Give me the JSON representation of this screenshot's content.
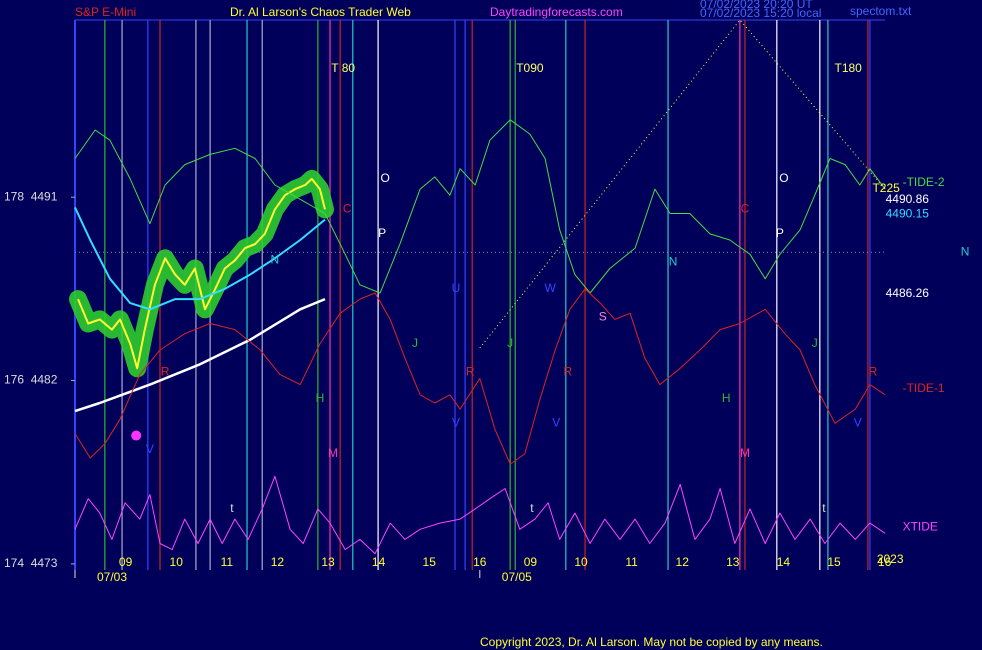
{
  "chart_data": {
    "type": "line",
    "title": "Dr. Al Larson's Chaos Trader Web",
    "instrument": "S&P E-Mini",
    "site": "Daytradingforecasts.com",
    "file": "spectom.txt",
    "stamps": [
      "07/02/2023 20:20 UT",
      "07/02/2023 15:20 local"
    ],
    "copyright": "Copyright 2023, Dr. Al Larson. May not be copied by any means.",
    "background": "#00005a",
    "xlim": [
      -1,
      15
    ],
    "ylim": [
      4472.7,
      4499.7
    ],
    "yticks": [
      {
        "value": 4491,
        "label": "178  4491"
      },
      {
        "value": 4482,
        "label": "176  4482"
      },
      {
        "value": 4473,
        "label": "174  4473"
      }
    ],
    "xticks": [
      {
        "value": 0,
        "label": "09"
      },
      {
        "value": 1,
        "label": "10"
      },
      {
        "value": 2,
        "label": "11"
      },
      {
        "value": 3,
        "label": "12"
      },
      {
        "value": 4,
        "label": "13"
      },
      {
        "value": 5,
        "label": "14"
      },
      {
        "value": 6,
        "label": "15"
      },
      {
        "value": 7,
        "label": "16"
      },
      {
        "value": 8,
        "label": "09"
      },
      {
        "value": 9,
        "label": "10"
      },
      {
        "value": 10,
        "label": "11"
      },
      {
        "value": 11,
        "label": "12"
      },
      {
        "value": 12,
        "label": "13"
      },
      {
        "value": 13,
        "label": "14"
      },
      {
        "value": 14,
        "label": "15"
      },
      {
        "value": 15,
        "label": "16"
      }
    ],
    "date_labels": [
      {
        "value": -1,
        "label": "07/03"
      },
      {
        "value": 7,
        "label": "07/05"
      }
    ],
    "series": [
      {
        "color": "#ffff33",
        "glow": "#2ecc2e",
        "width": 2,
        "x": [
          -0.94,
          -0.74,
          -0.51,
          -0.27,
          -0.11,
          0.09,
          0.23,
          0.38,
          0.58,
          0.78,
          0.98,
          1.17,
          1.37,
          1.57,
          1.77,
          1.96,
          2.16,
          2.36,
          2.56,
          2.75,
          2.95,
          3.15,
          3.35,
          3.55,
          3.68,
          3.84,
          3.94
        ],
        "values": [
          4486.0,
          4484.8,
          4485.0,
          4484.5,
          4485.0,
          4483.8,
          4482.6,
          4484.5,
          4486.7,
          4488.0,
          4487.2,
          4486.7,
          4487.5,
          4485.5,
          4486.5,
          4487.5,
          4487.9,
          4488.5,
          4488.7,
          4489.2,
          4490.4,
          4491.1,
          4491.4,
          4491.6,
          4491.9,
          4491.4,
          4490.4
        ]
      },
      {
        "color": "#33ddff",
        "width": 2,
        "x": [
          -1.0,
          -0.7,
          -0.31,
          0.09,
          0.48,
          0.98,
          1.47,
          1.96,
          2.46,
          2.95,
          3.45,
          3.94
        ],
        "values": [
          4490.5,
          4488.9,
          4487.0,
          4485.8,
          4485.5,
          4486.0,
          4486.0,
          4486.5,
          4487.2,
          4488.0,
          4488.9,
          4489.9
        ]
      },
      {
        "color": "#ffffff",
        "width": 2.5,
        "x": [
          -1.0,
          -0.51,
          0.48,
          1.47,
          2.46,
          3.45,
          3.94
        ],
        "values": [
          4480.5,
          4480.9,
          4481.8,
          4482.8,
          4484.0,
          4485.5,
          4486.0
        ]
      },
      {
        "name": "-TIDE-2",
        "color": "#44dd44",
        "width": 1,
        "x": [
          -1.0,
          -0.6,
          -0.31,
          0.09,
          0.48,
          0.78,
          1.17,
          1.67,
          2.16,
          2.56,
          2.95,
          3.45,
          3.94,
          4.34,
          4.63,
          5.03,
          5.42,
          5.82,
          6.11,
          6.41,
          6.61,
          6.91,
          7.2,
          7.6,
          7.99,
          8.29,
          8.58,
          8.88,
          9.18,
          9.57,
          10.07,
          10.46,
          10.76,
          11.15,
          11.55,
          11.94,
          12.34,
          12.64,
          12.93,
          13.33,
          13.62,
          13.92,
          14.22,
          14.51,
          14.71,
          15.01
        ],
        "values": [
          4492.9,
          4494.3,
          4493.8,
          4491.9,
          4489.7,
          4491.6,
          4492.6,
          4493.1,
          4493.4,
          4492.9,
          4491.6,
          4490.9,
          4490.2,
          4488.2,
          4486.7,
          4486.3,
          4488.7,
          4491.4,
          4492.0,
          4491.1,
          4492.4,
          4491.6,
          4493.8,
          4494.8,
          4494.1,
          4492.9,
          4489.4,
          4487.2,
          4486.3,
          4487.5,
          4488.5,
          4491.4,
          4490.2,
          4490.2,
          4489.2,
          4488.9,
          4488.2,
          4487.0,
          4488.2,
          4489.4,
          4491.1,
          4492.9,
          4492.6,
          4491.6,
          4492.4,
          4491.4
        ]
      },
      {
        "name": "-TIDE-1",
        "color": "#dd2222",
        "width": 1,
        "x": [
          -1.0,
          -0.7,
          -0.41,
          -0.11,
          0.28,
          0.68,
          1.17,
          1.67,
          2.16,
          2.66,
          3.05,
          3.45,
          3.84,
          4.24,
          4.63,
          4.93,
          5.23,
          5.52,
          5.82,
          6.11,
          6.41,
          6.61,
          7.0,
          7.3,
          7.6,
          7.89,
          8.19,
          8.49,
          8.78,
          9.08,
          9.38,
          9.67,
          9.97,
          10.26,
          10.56,
          10.96,
          11.35,
          11.75,
          12.14,
          12.64,
          13.03,
          13.33,
          13.62,
          14.02,
          14.42,
          14.71,
          15.01
        ],
        "values": [
          4479.4,
          4478.2,
          4478.9,
          4480.1,
          4482.3,
          4483.5,
          4484.3,
          4484.8,
          4484.5,
          4483.5,
          4482.3,
          4481.8,
          4483.8,
          4485.3,
          4486.0,
          4486.3,
          4485.0,
          4483.1,
          4481.3,
          4480.9,
          4481.3,
          4480.6,
          4482.1,
          4479.6,
          4477.9,
          4478.4,
          4481.1,
          4483.5,
          4485.5,
          4486.5,
          4485.8,
          4485.0,
          4485.3,
          4483.1,
          4481.8,
          4482.6,
          4483.5,
          4484.5,
          4484.8,
          4485.5,
          4484.3,
          4483.5,
          4481.8,
          4479.9,
          4480.6,
          4481.8,
          4481.3
        ]
      },
      {
        "name": "XTIDE",
        "color": "#ff44ff",
        "width": 1,
        "x": [
          -1.0,
          -0.74,
          -0.51,
          -0.27,
          -0.01,
          0.28,
          0.48,
          0.68,
          0.92,
          1.17,
          1.43,
          1.67,
          1.91,
          2.16,
          2.42,
          2.7,
          2.95,
          3.25,
          3.51,
          3.8,
          4.04,
          4.34,
          4.63,
          4.93,
          5.23,
          5.52,
          5.82,
          6.21,
          6.61,
          6.91,
          7.2,
          7.5,
          7.79,
          8.09,
          8.35,
          8.58,
          8.88,
          9.18,
          9.47,
          9.77,
          10.07,
          10.36,
          10.66,
          10.96,
          11.25,
          11.55,
          11.75,
          12.04,
          12.34,
          12.64,
          12.93,
          13.23,
          13.53,
          13.82,
          14.12,
          14.42,
          14.71,
          15.01
        ],
        "values": [
          4474.7,
          4476.2,
          4475.5,
          4474.2,
          4476.0,
          4475.2,
          4476.4,
          4474.0,
          4473.7,
          4475.2,
          4474.0,
          4475.2,
          4474.0,
          4475.2,
          4474.2,
          4475.7,
          4477.3,
          4474.7,
          4474.0,
          4475.7,
          4475.0,
          4473.7,
          4474.2,
          4473.5,
          4475.0,
          4474.2,
          4474.7,
          4475.0,
          4475.2,
          4475.7,
          4476.2,
          4476.7,
          4474.7,
          4475.2,
          4476.0,
          4474.2,
          4475.5,
          4474.0,
          4475.2,
          4474.2,
          4475.2,
          4474.0,
          4475.0,
          4476.9,
          4474.2,
          4475.2,
          4476.7,
          4474.0,
          4475.7,
          4474.0,
          4475.5,
          4474.2,
          4475.2,
          4474.0,
          4475.0,
          4474.2,
          4475.0,
          4474.5
        ]
      },
      {
        "color": "#ffff33",
        "width": 1,
        "dotted": true,
        "x": [
          7.0,
          12.14,
          15.01
        ],
        "values": [
          4483.6,
          4499.7,
          4491.4
        ]
      },
      {
        "color": "#8888aa",
        "width": 1,
        "dotted": true,
        "x": [
          -1,
          15
        ],
        "values": [
          4488.3,
          4488.3
        ]
      }
    ],
    "marker": {
      "x": 0.21,
      "y": 4479.3,
      "color": "#ff33ff"
    },
    "vlines": [
      {
        "x": -0.41,
        "color": "#2db82d"
      },
      {
        "x": -0.07,
        "color": "#aaaacc"
      },
      {
        "x": 0.44,
        "color": "#3344ff"
      },
      {
        "x": 0.68,
        "color": "#cc2222"
      },
      {
        "x": 1.39,
        "color": "#aaaacc"
      },
      {
        "x": 1.67,
        "color": "#aaaacc"
      },
      {
        "x": 2.4,
        "color": "#22cccc"
      },
      {
        "x": 2.7,
        "color": "#aaaacc"
      },
      {
        "x": 3.8,
        "color": "#2db82d"
      },
      {
        "x": 4.04,
        "color": "#ff33aa"
      },
      {
        "x": 4.24,
        "color": "#cc2222"
      },
      {
        "x": 4.49,
        "color": "#22cccc"
      },
      {
        "x": 4.99,
        "color": "#ffffff"
      },
      {
        "x": 6.51,
        "color": "#3344ff"
      },
      {
        "x": 6.71,
        "color": "#3344ff"
      },
      {
        "x": 6.85,
        "color": "#cc2222"
      },
      {
        "x": 7.6,
        "color": "#2db82d"
      },
      {
        "x": 7.7,
        "color": "#2db82d"
      },
      {
        "x": 8.7,
        "color": "#22cccc"
      },
      {
        "x": 9.08,
        "color": "#cc2222"
      },
      {
        "x": 10.72,
        "color": "#22cccc"
      },
      {
        "x": 12.14,
        "color": "#ff33aa"
      },
      {
        "x": 12.24,
        "color": "#cc2222"
      },
      {
        "x": 12.87,
        "color": "#ffffff"
      },
      {
        "x": 13.72,
        "color": "#ffffff"
      },
      {
        "x": 13.88,
        "color": "#22cccc"
      },
      {
        "x": 14.67,
        "color": "#cc2222"
      },
      {
        "x": 14.71,
        "color": "#3344ff"
      }
    ],
    "annotations": [
      {
        "text": "T 80",
        "x": 4.3,
        "y": 4497.3,
        "color": "#ffff66"
      },
      {
        "text": "T090",
        "x": 7.99,
        "y": 4497.3,
        "color": "#ffff66"
      },
      {
        "text": "T180",
        "x": 14.28,
        "y": 4497.3,
        "color": "#ffff66"
      },
      {
        "text": "O",
        "x": 5.13,
        "y": 4491.9,
        "color": "#ffffff"
      },
      {
        "text": "P",
        "x": 5.07,
        "y": 4489.2,
        "color": "#ffffff"
      },
      {
        "text": "C",
        "x": 4.38,
        "y": 4490.4,
        "color": "#dd2222"
      },
      {
        "text": "N",
        "x": 2.95,
        "y": 4487.9,
        "color": "#22cccc"
      },
      {
        "text": "J",
        "x": 5.72,
        "y": 4483.8,
        "color": "#2db82d"
      },
      {
        "text": "H",
        "x": 3.84,
        "y": 4481.1,
        "color": "#2db82d"
      },
      {
        "text": "M",
        "x": 4.1,
        "y": 4478.4,
        "color": "#ff33aa"
      },
      {
        "text": "R",
        "x": 0.78,
        "y": 4482.4,
        "color": "#dd2222"
      },
      {
        "text": "R",
        "x": 6.81,
        "y": 4482.4,
        "color": "#dd2222"
      },
      {
        "text": "R",
        "x": 8.74,
        "y": 4482.4,
        "color": "#dd2222"
      },
      {
        "text": "S",
        "x": 9.43,
        "y": 4485.1,
        "color": "#ff88cc"
      },
      {
        "text": "J",
        "x": 7.6,
        "y": 4483.8,
        "color": "#2db82d"
      },
      {
        "text": "W",
        "x": 8.39,
        "y": 4486.5,
        "color": "#3344ff"
      },
      {
        "text": "U",
        "x": 6.53,
        "y": 4486.5,
        "color": "#3344ff"
      },
      {
        "text": "N",
        "x": 10.82,
        "y": 4487.8,
        "color": "#22cccc"
      },
      {
        "text": "C",
        "x": 12.24,
        "y": 4490.4,
        "color": "#dd2222"
      },
      {
        "text": "O",
        "x": 13.01,
        "y": 4491.9,
        "color": "#ffffff"
      },
      {
        "text": "P",
        "x": 12.93,
        "y": 4489.2,
        "color": "#ffffff"
      },
      {
        "text": "H",
        "x": 11.87,
        "y": 4481.1,
        "color": "#2db82d"
      },
      {
        "text": "M",
        "x": 12.24,
        "y": 4478.4,
        "color": "#ff33aa"
      },
      {
        "text": "J",
        "x": 13.62,
        "y": 4483.8,
        "color": "#2db82d"
      },
      {
        "text": "R",
        "x": 14.77,
        "y": 4482.4,
        "color": "#dd2222"
      },
      {
        "text": "V",
        "x": 0.48,
        "y": 4478.6,
        "color": "#3344ff"
      },
      {
        "text": "V",
        "x": 6.53,
        "y": 4479.9,
        "color": "#3344ff"
      },
      {
        "text": "V",
        "x": 8.51,
        "y": 4479.9,
        "color": "#3344ff"
      },
      {
        "text": "V",
        "x": 14.47,
        "y": 4479.9,
        "color": "#3344ff"
      },
      {
        "text": "t",
        "x": 2.1,
        "y": 4475.7,
        "color": "#dddddd"
      },
      {
        "text": "t",
        "x": 8.03,
        "y": 4475.7,
        "color": "#dddddd"
      },
      {
        "text": "t",
        "x": 13.8,
        "y": 4475.7,
        "color": "#dddddd"
      },
      {
        "text": "N",
        "x": 16.59,
        "y": 4488.3,
        "color": "#22cccc"
      },
      {
        "text": "T225",
        "x": 15.03,
        "y": 4491.4,
        "color": "#ffff33"
      },
      {
        "text": "2023",
        "x": 15.11,
        "y": 4473.2,
        "color": "#ffff33"
      }
    ],
    "price_labels": [
      {
        "value": 4490.86,
        "color": "#ffffff"
      },
      {
        "value": 4490.15,
        "color": "#33ddff"
      },
      {
        "value": 4486.26,
        "color": "#ffffff"
      }
    ]
  }
}
